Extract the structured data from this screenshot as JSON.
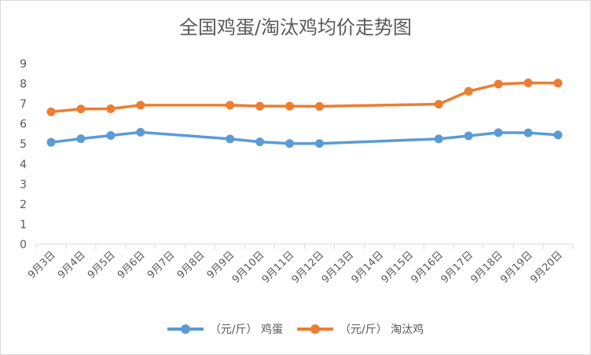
{
  "chart_data": {
    "type": "line",
    "title": "全国鸡蛋/淘汰鸡均价走势图",
    "categories": [
      "9月3日",
      "9月4日",
      "9月5日",
      "9月6日",
      "9月7日",
      "9月8日",
      "9月9日",
      "9月10日",
      "9月11日",
      "9月12日",
      "9月13日",
      "9月14日",
      "9月15日",
      "9月16日",
      "9月17日",
      "9月18日",
      "9月19日",
      "9月20日"
    ],
    "ylim": [
      0,
      9
    ],
    "yticks": [
      "0",
      "1",
      "2",
      "3",
      "4",
      "5",
      "6",
      "7",
      "8",
      "9"
    ],
    "grid": false,
    "legend_position": "bottom",
    "series": [
      {
        "name": "（元/斤） 鸡蛋",
        "color": "#5b9bd5",
        "values": [
          5.08,
          5.26,
          5.42,
          5.58,
          null,
          null,
          5.25,
          5.1,
          5.02,
          5.02,
          null,
          null,
          null,
          5.25,
          5.4,
          5.56,
          5.55,
          5.45
        ]
      },
      {
        "name": "（元/斤） 淘汰鸡",
        "color": "#ed7d31",
        "values": [
          6.6,
          6.74,
          6.75,
          6.93,
          null,
          null,
          6.93,
          6.88,
          6.88,
          6.87,
          null,
          null,
          null,
          6.98,
          7.62,
          7.98,
          8.04,
          8.03
        ]
      }
    ]
  }
}
